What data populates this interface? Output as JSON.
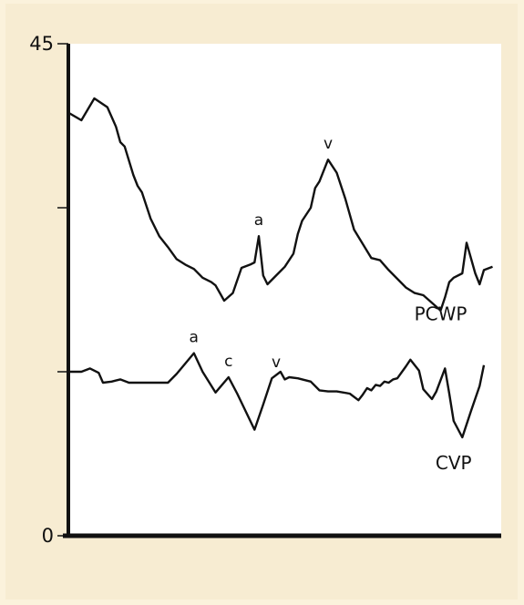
{
  "colors": {
    "page_background": "#fbf2dc",
    "panel_background": "#f7ecd2",
    "plot_background": "#ffffff",
    "line": "#111111"
  },
  "chart_data": {
    "type": "line",
    "title": "",
    "xlabel": "",
    "ylabel": "",
    "ylim": [
      0,
      45
    ],
    "xlim": [
      0,
      100
    ],
    "y_ticks": [
      0,
      15,
      30,
      45
    ],
    "y_tick_labels": [
      "0",
      "",
      "",
      "45"
    ],
    "grid": false,
    "legend": "none",
    "series": [
      {
        "name": "PCWP",
        "label_anchor": [
          86,
          19.7
        ],
        "points": [
          [
            0,
            38.7
          ],
          [
            3,
            38
          ],
          [
            6,
            40
          ],
          [
            9,
            39.2
          ],
          [
            11,
            37.4
          ],
          [
            12,
            36
          ],
          [
            13,
            35.6
          ],
          [
            15,
            33
          ],
          [
            16,
            32
          ],
          [
            17,
            31.4
          ],
          [
            19,
            29
          ],
          [
            21,
            27.4
          ],
          [
            23,
            26.4
          ],
          [
            25,
            25.3
          ],
          [
            27,
            24.8
          ],
          [
            29,
            24.4
          ],
          [
            31,
            23.6
          ],
          [
            33,
            23.2
          ],
          [
            34,
            22.9
          ],
          [
            35,
            22.2
          ],
          [
            36,
            21.5
          ],
          [
            38,
            22.2
          ],
          [
            40,
            24.5
          ],
          [
            42,
            24.8
          ],
          [
            43,
            25
          ],
          [
            44,
            27.4
          ],
          [
            45,
            23.8
          ],
          [
            46,
            23
          ],
          [
            48,
            23.8
          ],
          [
            50,
            24.6
          ],
          [
            52,
            25.8
          ],
          [
            53,
            27.6
          ],
          [
            54,
            28.8
          ],
          [
            56,
            30
          ],
          [
            57,
            31.8
          ],
          [
            58,
            32.4
          ],
          [
            60,
            34.4
          ],
          [
            62,
            33.2
          ],
          [
            64,
            30.8
          ],
          [
            66,
            28
          ],
          [
            68,
            26.7
          ],
          [
            70,
            25.4
          ],
          [
            72,
            25.2
          ],
          [
            74,
            24.3
          ],
          [
            76,
            23.5
          ],
          [
            78,
            22.7
          ],
          [
            80,
            22.2
          ],
          [
            82,
            22
          ],
          [
            84,
            21.3
          ],
          [
            86,
            20.6
          ],
          [
            87,
            21.8
          ],
          [
            88,
            23.2
          ],
          [
            89,
            23.6
          ],
          [
            91,
            24
          ],
          [
            92,
            26.8
          ],
          [
            94,
            24
          ],
          [
            95,
            23
          ],
          [
            96,
            24.3
          ],
          [
            98,
            24.6
          ]
        ]
      },
      {
        "name": "CVP",
        "label_anchor": [
          89,
          6.1
        ],
        "points": [
          [
            0,
            15
          ],
          [
            3,
            15
          ],
          [
            5,
            15.3
          ],
          [
            7,
            14.9
          ],
          [
            8,
            14
          ],
          [
            10,
            14.1
          ],
          [
            12,
            14.3
          ],
          [
            14,
            14
          ],
          [
            16,
            14
          ],
          [
            18,
            14
          ],
          [
            20,
            14
          ],
          [
            23,
            14
          ],
          [
            25,
            14.8
          ],
          [
            29,
            16.7
          ],
          [
            31,
            15
          ],
          [
            34,
            13.1
          ],
          [
            37,
            14.5
          ],
          [
            39,
            13
          ],
          [
            43,
            9.7
          ],
          [
            45,
            12
          ],
          [
            47,
            14.4
          ],
          [
            49,
            15
          ],
          [
            50,
            14.3
          ],
          [
            51,
            14.5
          ],
          [
            53,
            14.4
          ],
          [
            56,
            14.1
          ],
          [
            58,
            13.3
          ],
          [
            60,
            13.2
          ],
          [
            62,
            13.2
          ],
          [
            65,
            13
          ],
          [
            67,
            12.4
          ],
          [
            68,
            12.9
          ],
          [
            69,
            13.5
          ],
          [
            70,
            13.3
          ],
          [
            71,
            13.8
          ],
          [
            72,
            13.7
          ],
          [
            73,
            14.1
          ],
          [
            74,
            14
          ],
          [
            75,
            14.3
          ],
          [
            76,
            14.4
          ],
          [
            78,
            15.5
          ],
          [
            79,
            16.1
          ],
          [
            81,
            15.1
          ],
          [
            82,
            13.4
          ],
          [
            84,
            12.5
          ],
          [
            85,
            13.2
          ],
          [
            87,
            15.3
          ],
          [
            88,
            13
          ],
          [
            89,
            10.5
          ],
          [
            91,
            9
          ],
          [
            93,
            11.4
          ],
          [
            95,
            13.7
          ],
          [
            96,
            15.6
          ]
        ]
      }
    ],
    "annotations": [
      {
        "series": "PCWP",
        "text": "a",
        "x": 44,
        "y": 27.4
      },
      {
        "series": "PCWP",
        "text": "v",
        "x": 60,
        "y": 34.4
      },
      {
        "series": "CVP",
        "text": "a",
        "x": 29,
        "y": 16.7
      },
      {
        "series": "CVP",
        "text": "c",
        "x": 37,
        "y": 14.5
      },
      {
        "series": "CVP",
        "text": "v",
        "x": 48,
        "y": 14.4
      }
    ]
  }
}
